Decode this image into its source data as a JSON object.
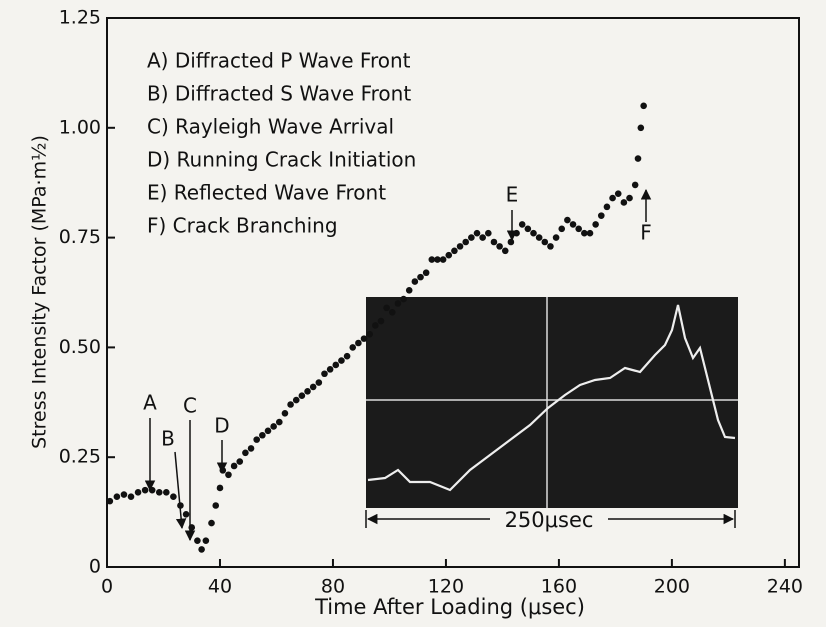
{
  "chart_data": {
    "type": "scatter",
    "xlabel": "Time After Loading (μsec)",
    "ylabel": "Stress Intensity Factor (MPa·m½)",
    "xlim": [
      0,
      245
    ],
    "ylim": [
      0,
      1.25
    ],
    "xticks": [
      0,
      40,
      80,
      120,
      160,
      200,
      240
    ],
    "yticks": [
      0,
      0.25,
      {
        "value": 0.5,
        "label": "0.50"
      },
      0.75,
      {
        "value": 1,
        "label": "1.00"
      },
      1.25
    ],
    "color": "#111111",
    "legend": [
      "A) Diffracted P Wave Front",
      "B) Diffracted S Wave Front",
      "C) Rayleigh Wave Arrival",
      "D) Running Crack Initiation",
      "E) Reflected Wave Front",
      "F) Crack Branching"
    ],
    "annotations": [
      "A",
      "B",
      "C",
      "D",
      "E",
      "F"
    ],
    "inset_label": "250μsec",
    "x": [
      1,
      3.5,
      6,
      8.5,
      11,
      13.5,
      16,
      18.5,
      21,
      23.5,
      26,
      28,
      30,
      32,
      33.5,
      35,
      37,
      38.5,
      40,
      41,
      43,
      45,
      47,
      49,
      51,
      53,
      55,
      57,
      59,
      61,
      63,
      65,
      67,
      69,
      71,
      73,
      75,
      77,
      79,
      81,
      83,
      85,
      87,
      89,
      91,
      93,
      95,
      97,
      99,
      101,
      103,
      105,
      107,
      109,
      111,
      113,
      115,
      117,
      119,
      121,
      123,
      125,
      127,
      129,
      131,
      133,
      135,
      137,
      139,
      141,
      143,
      145,
      147,
      149,
      151,
      153,
      155,
      157,
      159,
      161,
      163,
      165,
      167,
      169,
      171,
      173,
      175,
      177,
      179,
      181,
      183,
      185,
      187,
      188,
      189,
      190
    ],
    "values": [
      0.15,
      0.16,
      0.165,
      0.16,
      0.17,
      0.175,
      0.175,
      0.17,
      0.17,
      0.16,
      0.14,
      0.12,
      0.09,
      0.06,
      0.04,
      0.06,
      0.1,
      0.14,
      0.18,
      0.22,
      0.21,
      0.23,
      0.24,
      0.26,
      0.27,
      0.29,
      0.3,
      0.31,
      0.32,
      0.33,
      0.35,
      0.37,
      0.38,
      0.39,
      0.4,
      0.41,
      0.42,
      0.44,
      0.45,
      0.46,
      0.47,
      0.48,
      0.5,
      0.51,
      0.52,
      0.53,
      0.55,
      0.56,
      0.59,
      0.58,
      0.6,
      0.61,
      0.63,
      0.65,
      0.66,
      0.67,
      0.7,
      0.7,
      0.7,
      0.71,
      0.72,
      0.73,
      0.74,
      0.75,
      0.76,
      0.75,
      0.76,
      0.74,
      0.73,
      0.72,
      0.74,
      0.76,
      0.78,
      0.77,
      0.76,
      0.75,
      0.74,
      0.73,
      0.75,
      0.77,
      0.79,
      0.78,
      0.77,
      0.76,
      0.76,
      0.78,
      0.8,
      0.82,
      0.84,
      0.85,
      0.83,
      0.84,
      0.87,
      0.93,
      1.0,
      1.05
    ]
  }
}
